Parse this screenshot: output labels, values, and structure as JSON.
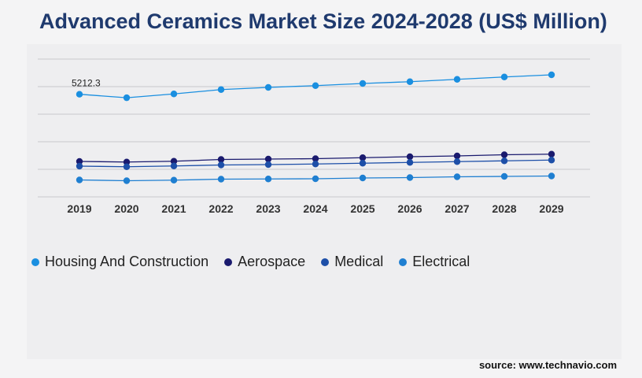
{
  "title": "Advanced Ceramics Market Size 2024-2028 (US$ Million)",
  "source": "source: www.technavio.com",
  "legend": [
    {
      "label": "Housing And Construction",
      "color": "#1a8fe0"
    },
    {
      "label": "Aerospace",
      "color": "#1a1a6e"
    },
    {
      "label": "Medical",
      "color": "#1d4fa8"
    },
    {
      "label": "Electrical",
      "color": "#1f7fd1"
    }
  ],
  "chart_data": {
    "type": "line",
    "categories": [
      "2019",
      "2020",
      "2021",
      "2022",
      "2023",
      "2024",
      "2025",
      "2026",
      "2027",
      "2028",
      "2029"
    ],
    "ylim": [
      0,
      7000
    ],
    "gridlines": true,
    "series": [
      {
        "name": "Housing And Construction",
        "color": "#1a8fe0",
        "values": [
          5212.3,
          5035,
          5230,
          5450,
          5560,
          5650,
          5760,
          5850,
          5970,
          6090,
          6200
        ]
      },
      {
        "name": "Aerospace",
        "color": "#1a1a6e",
        "values": [
          1800,
          1770,
          1810,
          1900,
          1920,
          1940,
          1990,
          2040,
          2080,
          2140,
          2170
        ]
      },
      {
        "name": "Medical",
        "color": "#1d4fa8",
        "values": [
          1560,
          1530,
          1570,
          1620,
          1640,
          1670,
          1710,
          1750,
          1790,
          1830,
          1870
        ]
      },
      {
        "name": "Electrical",
        "color": "#1f7fd1",
        "values": [
          860,
          820,
          850,
          900,
          910,
          920,
          960,
          980,
          1020,
          1040,
          1060
        ]
      }
    ],
    "annotations": [
      {
        "series": 0,
        "index": 0,
        "text": "5212.3"
      }
    ]
  }
}
